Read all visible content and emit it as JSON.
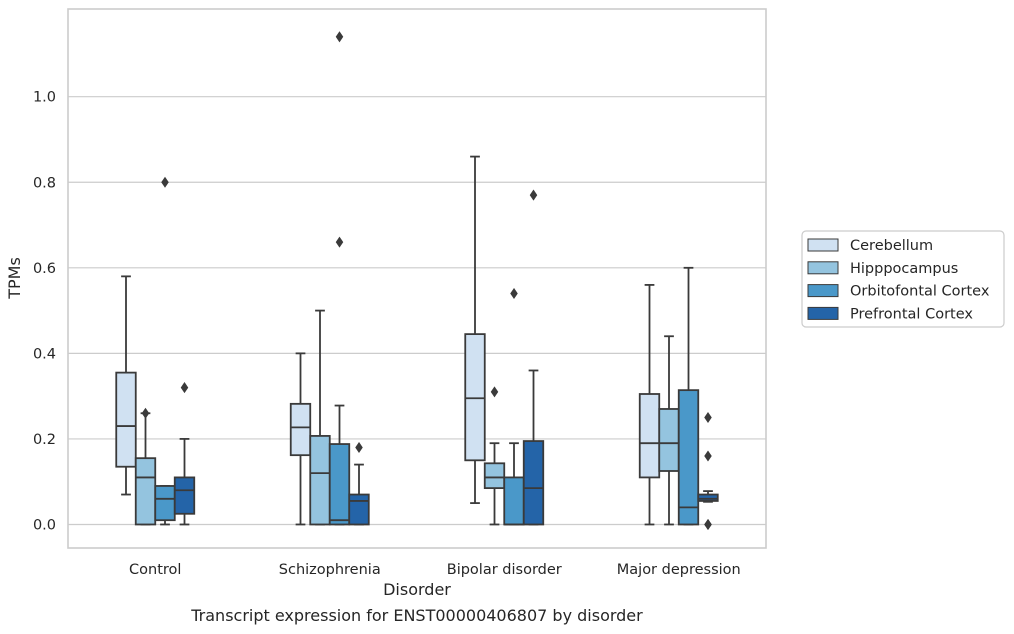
{
  "caption": "Transcript expression for ENST00000406807 by disorder",
  "chart_data": {
    "type": "box",
    "xlabel": "Disorder",
    "ylabel": "TPMs",
    "ylim": [
      -0.055,
      1.205
    ],
    "yticks": [
      0.0,
      0.2,
      0.4,
      0.6,
      0.8,
      1.0
    ],
    "ytick_labels": [
      "0.0",
      "0.2",
      "0.4",
      "0.6",
      "0.8",
      "1.0"
    ],
    "grid": "horizontal",
    "legend_position": "right",
    "categories": [
      "Control",
      "Schizophrenia",
      "Bipolar disorder",
      "Major depression"
    ],
    "series": [
      {
        "name": "Cerebellum",
        "color": "#d0e1f2",
        "boxes": [
          {
            "q1": 0.135,
            "median": 0.23,
            "q3": 0.355,
            "whislo": 0.07,
            "whishi": 0.58,
            "fliers": []
          },
          {
            "q1": 0.162,
            "median": 0.227,
            "q3": 0.282,
            "whislo": 0.0,
            "whishi": 0.4,
            "fliers": []
          },
          {
            "q1": 0.15,
            "median": 0.295,
            "q3": 0.445,
            "whislo": 0.05,
            "whishi": 0.86,
            "fliers": []
          },
          {
            "q1": 0.11,
            "median": 0.19,
            "q3": 0.305,
            "whislo": 0.0,
            "whishi": 0.56,
            "fliers": []
          }
        ]
      },
      {
        "name": "Hipppocampus",
        "color": "#94c4df",
        "boxes": [
          {
            "q1": 0.0,
            "median": 0.11,
            "q3": 0.155,
            "whislo": 0.0,
            "whishi": 0.26,
            "fliers": [
              0.26
            ]
          },
          {
            "q1": 0.0,
            "median": 0.12,
            "q3": 0.207,
            "whislo": 0.0,
            "whishi": 0.5,
            "fliers": []
          },
          {
            "q1": 0.085,
            "median": 0.11,
            "q3": 0.143,
            "whislo": 0.0,
            "whishi": 0.19,
            "fliers": [
              0.31
            ]
          },
          {
            "q1": 0.125,
            "median": 0.19,
            "q3": 0.27,
            "whislo": 0.0,
            "whishi": 0.44,
            "fliers": []
          }
        ]
      },
      {
        "name": "Orbitofontal Cortex",
        "color": "#4a98c9",
        "boxes": [
          {
            "q1": 0.01,
            "median": 0.06,
            "q3": 0.09,
            "whislo": 0.0,
            "whishi": 0.09,
            "fliers": [
              0.8
            ]
          },
          {
            "q1": 0.0,
            "median": 0.01,
            "q3": 0.188,
            "whislo": 0.0,
            "whishi": 0.278,
            "fliers": [
              0.66,
              1.14
            ]
          },
          {
            "q1": 0.0,
            "median": 0.0,
            "q3": 0.11,
            "whislo": 0.0,
            "whishi": 0.19,
            "fliers": [
              0.54
            ]
          },
          {
            "q1": 0.0,
            "median": 0.04,
            "q3": 0.314,
            "whislo": 0.0,
            "whishi": 0.6,
            "fliers": []
          }
        ]
      },
      {
        "name": "Prefrontal Cortex",
        "color": "#2464a8",
        "boxes": [
          {
            "q1": 0.025,
            "median": 0.08,
            "q3": 0.11,
            "whislo": 0.0,
            "whishi": 0.2,
            "fliers": [
              0.32
            ]
          },
          {
            "q1": 0.0,
            "median": 0.055,
            "q3": 0.07,
            "whislo": 0.0,
            "whishi": 0.14,
            "fliers": [
              0.18
            ]
          },
          {
            "q1": 0.0,
            "median": 0.085,
            "q3": 0.195,
            "whislo": 0.0,
            "whishi": 0.36,
            "fliers": [
              0.77
            ]
          },
          {
            "q1": 0.055,
            "median": 0.06,
            "q3": 0.07,
            "whislo": 0.053,
            "whishi": 0.078,
            "fliers": [
              0.0,
              0.0,
              0.16,
              0.25
            ]
          }
        ]
      }
    ]
  }
}
